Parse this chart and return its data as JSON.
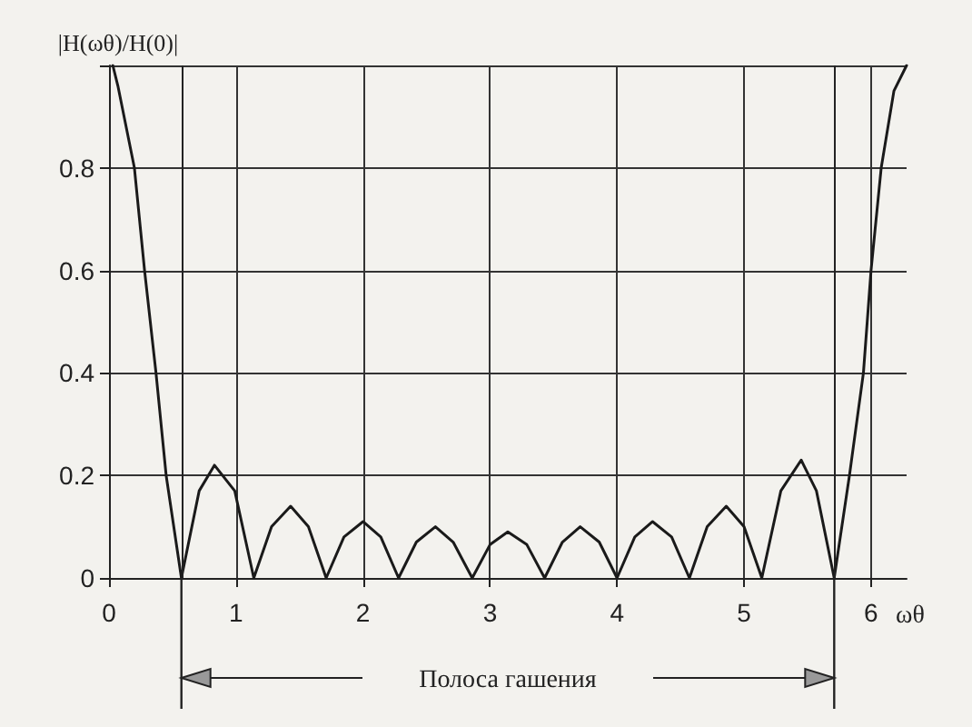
{
  "chart_data": {
    "type": "line",
    "ylabel": "|H(ωθ)/H(0)|",
    "xlabel": "ωθ",
    "x": [
      0.03,
      0.07,
      0.2,
      0.28,
      0.37,
      0.45,
      0.57,
      0.71,
      0.83,
      0.99,
      1.14,
      1.28,
      1.43,
      1.57,
      1.71,
      1.85,
      2.0,
      2.14,
      2.28,
      2.42,
      2.57,
      2.71,
      2.86,
      3.0,
      3.14,
      3.29,
      3.43,
      3.57,
      3.71,
      3.86,
      4.0,
      4.14,
      4.28,
      4.43,
      4.57,
      4.71,
      4.86,
      5.0,
      5.14,
      5.29,
      5.45,
      5.57,
      5.71,
      5.83,
      5.94,
      6.0,
      6.08,
      6.18,
      6.28
    ],
    "series": [
      {
        "color": "#1a1a1a",
        "values": [
          1.0,
          0.96,
          0.8,
          0.6,
          0.4,
          0.2,
          0,
          0.17,
          0.22,
          0.17,
          0,
          0.1,
          0.14,
          0.1,
          0,
          0.08,
          0.11,
          0.08,
          0,
          0.07,
          0.1,
          0.07,
          0,
          0.065,
          0.09,
          0.065,
          0,
          0.07,
          0.1,
          0.07,
          0,
          0.08,
          0.11,
          0.08,
          0,
          0.1,
          0.14,
          0.1,
          0,
          0.17,
          0.23,
          0.17,
          0,
          0.2,
          0.4,
          0.6,
          0.8,
          0.95,
          1.0
        ]
      }
    ],
    "xlim": [
      0,
      6.28
    ],
    "xticks": [
      0,
      1,
      2,
      3,
      4,
      5,
      6
    ],
    "ylim": [
      0,
      1
    ],
    "yticks": [
      0,
      0.2,
      0.4,
      0.6,
      0.8,
      {
        "value": 1,
        "label": null
      }
    ],
    "grid": true,
    "marker": "none",
    "line_style": "solid",
    "ref_lines": [
      {
        "axis": "x",
        "value": 0.57
      },
      {
        "axis": "x",
        "value": 5.71
      }
    ],
    "annotations": [
      "Полоса гашения"
    ]
  }
}
